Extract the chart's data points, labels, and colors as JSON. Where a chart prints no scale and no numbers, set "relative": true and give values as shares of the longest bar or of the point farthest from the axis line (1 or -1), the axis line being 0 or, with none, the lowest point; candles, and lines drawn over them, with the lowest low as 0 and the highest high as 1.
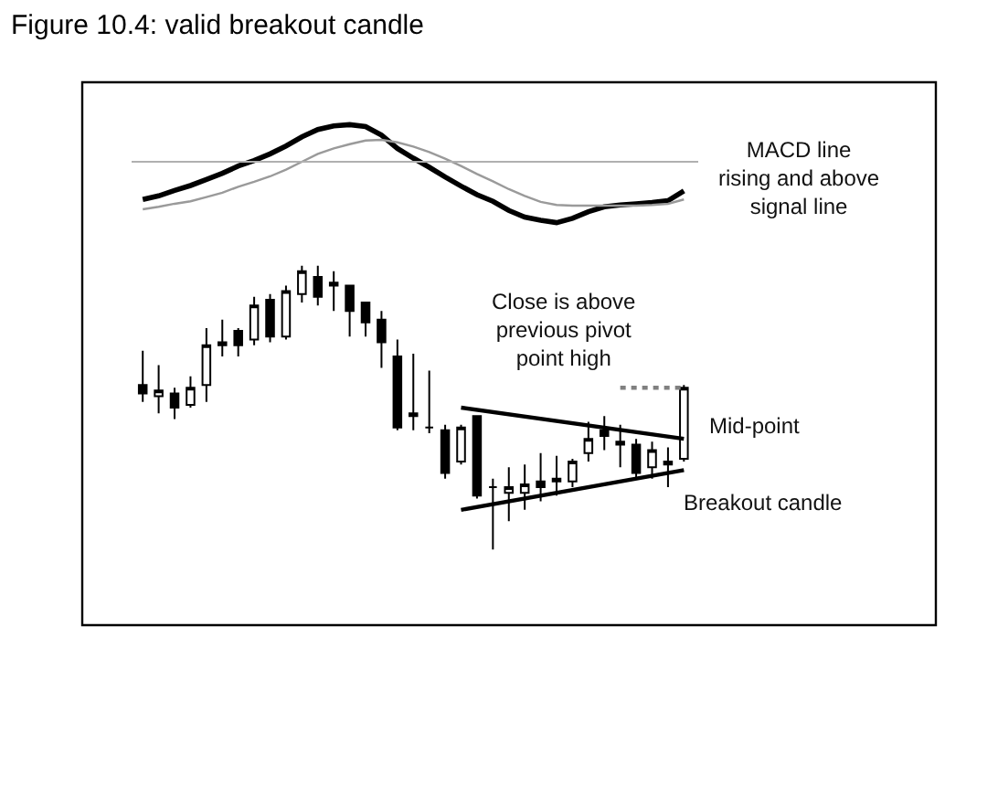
{
  "chart_data": [
    {
      "type": "line",
      "title": "Figure 10.4: valid breakout candle",
      "relative": true,
      "categories": [
        null,
        null,
        null,
        null,
        null,
        null,
        null,
        null,
        null,
        null,
        null,
        null,
        null,
        null,
        null,
        null,
        null,
        null,
        null,
        null,
        null,
        null,
        null,
        null,
        null,
        null,
        null,
        null,
        null,
        null,
        null,
        null,
        null,
        null,
        null
      ],
      "series": [
        {
          "color": "#000000",
          "values": [
            -0.62,
            -0.56,
            -0.47,
            -0.39,
            -0.29,
            -0.19,
            -0.07,
            0.02,
            0.13,
            0.26,
            0.41,
            0.53,
            0.59,
            0.61,
            0.58,
            0.44,
            0.22,
            0.06,
            -0.09,
            -0.25,
            -0.4,
            -0.54,
            -0.65,
            -0.8,
            -0.91,
            -0.96,
            -1.0,
            -0.93,
            -0.82,
            -0.74,
            -0.71,
            -0.69,
            -0.67,
            -0.64,
            -0.48
          ]
        },
        {
          "color": "#9a9a9a",
          "values": [
            -0.78,
            -0.74,
            -0.69,
            -0.65,
            -0.58,
            -0.51,
            -0.41,
            -0.33,
            -0.24,
            -0.13,
            0.0,
            0.13,
            0.22,
            0.29,
            0.35,
            0.36,
            0.32,
            0.25,
            0.16,
            0.05,
            -0.07,
            -0.2,
            -0.32,
            -0.45,
            -0.56,
            -0.66,
            -0.71,
            -0.72,
            -0.72,
            -0.72,
            -0.72,
            -0.72,
            -0.71,
            -0.69,
            -0.62
          ]
        }
      ],
      "ref_lines": [
        {
          "axis": "y",
          "value": 0,
          "color": "#b0b0b0"
        }
      ],
      "annotations": [
        "MACD line\nrising and above\nsignal line"
      ]
    },
    {
      "type": "candlestick",
      "relative": true,
      "categories": [
        null,
        null,
        null,
        null,
        null,
        null,
        null,
        null,
        null,
        null,
        null,
        null,
        null,
        null,
        null,
        null,
        null,
        null,
        null,
        null,
        null,
        null,
        null,
        null,
        null,
        null,
        null,
        null,
        null,
        null,
        null,
        null,
        null,
        null,
        null
      ],
      "ohlc": [
        [
          0.58,
          0.7,
          0.52,
          0.55
        ],
        [
          0.54,
          0.65,
          0.48,
          0.56
        ],
        [
          0.55,
          0.57,
          0.46,
          0.5
        ],
        [
          0.51,
          0.61,
          0.5,
          0.57
        ],
        [
          0.58,
          0.78,
          0.52,
          0.72
        ],
        [
          0.73,
          0.81,
          0.68,
          0.72
        ],
        [
          0.77,
          0.78,
          0.68,
          0.72
        ],
        [
          0.74,
          0.89,
          0.72,
          0.86
        ],
        [
          0.88,
          0.9,
          0.73,
          0.75
        ],
        [
          0.75,
          0.93,
          0.74,
          0.91
        ],
        [
          0.9,
          1.0,
          0.87,
          0.98
        ],
        [
          0.96,
          1.0,
          0.86,
          0.89
        ],
        [
          0.94,
          0.98,
          0.84,
          0.93
        ],
        [
          0.93,
          0.93,
          0.75,
          0.84
        ],
        [
          0.87,
          0.87,
          0.75,
          0.8
        ],
        [
          0.81,
          0.84,
          0.64,
          0.73
        ],
        [
          0.68,
          0.74,
          0.42,
          0.43
        ],
        [
          0.48,
          0.69,
          0.42,
          0.47
        ],
        [
          0.43,
          0.63,
          0.41,
          0.43
        ],
        [
          0.42,
          0.44,
          0.25,
          0.27
        ],
        [
          0.31,
          0.44,
          0.3,
          0.43
        ],
        [
          0.47,
          0.47,
          0.18,
          0.19
        ],
        [
          0.22,
          0.25,
          0.0,
          0.22
        ],
        [
          0.2,
          0.29,
          0.1,
          0.22
        ],
        [
          0.2,
          0.3,
          0.14,
          0.23
        ],
        [
          0.24,
          0.34,
          0.17,
          0.22
        ],
        [
          0.25,
          0.33,
          0.19,
          0.24
        ],
        [
          0.24,
          0.32,
          0.22,
          0.31
        ],
        [
          0.34,
          0.45,
          0.31,
          0.39
        ],
        [
          0.42,
          0.47,
          0.35,
          0.4
        ],
        [
          0.38,
          0.44,
          0.29,
          0.37
        ],
        [
          0.37,
          0.39,
          0.25,
          0.27
        ],
        [
          0.29,
          0.38,
          0.25,
          0.35
        ],
        [
          0.31,
          0.36,
          0.22,
          0.3
        ],
        [
          0.32,
          0.58,
          0.31,
          0.57
        ]
      ],
      "series": [
        {
          "type": "line",
          "color": "#000000",
          "values": [
            null,
            null,
            null,
            null,
            null,
            null,
            null,
            null,
            null,
            null,
            null,
            null,
            null,
            null,
            null,
            null,
            null,
            null,
            null,
            null,
            0.5,
            null,
            null,
            null,
            null,
            null,
            null,
            null,
            null,
            null,
            null,
            null,
            null,
            null,
            0.39
          ]
        },
        {
          "type": "line",
          "color": "#000000",
          "values": [
            null,
            null,
            null,
            null,
            null,
            null,
            null,
            null,
            null,
            null,
            null,
            null,
            null,
            null,
            null,
            null,
            null,
            null,
            null,
            null,
            0.14,
            null,
            null,
            null,
            null,
            null,
            null,
            null,
            null,
            null,
            null,
            null,
            null,
            null,
            0.28
          ]
        },
        {
          "type": "line",
          "color": "#808080",
          "line_style": "dotted",
          "values": [
            null,
            null,
            null,
            null,
            null,
            null,
            null,
            null,
            null,
            null,
            null,
            null,
            null,
            null,
            null,
            null,
            null,
            null,
            null,
            null,
            null,
            null,
            null,
            null,
            null,
            null,
            null,
            null,
            null,
            null,
            0.57,
            null,
            null,
            null,
            0.57
          ]
        }
      ],
      "annotations": [
        "Close is above\nprevious pivot\npoint high",
        "Mid-point",
        "Breakout candle"
      ]
    }
  ]
}
